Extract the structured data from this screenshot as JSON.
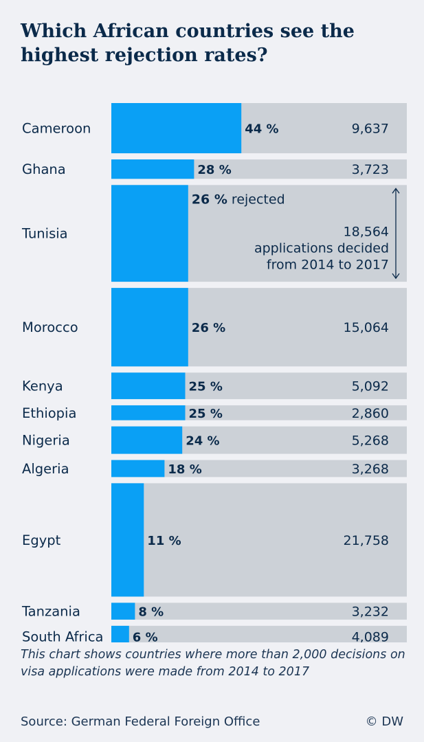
{
  "title": "Which African countries see the highest rejection rates?",
  "colors": {
    "rejected_bar": "#0aa0f5",
    "decided_bar": "#ccd1d7",
    "text": "#0b2a4a",
    "background": "#f0f1f5"
  },
  "chart_data": {
    "type": "bar",
    "orientation": "horizontal",
    "encoding": "bar height proportional to applications decided; blue fill proportional to rejection rate",
    "series": [
      {
        "name": "rejected",
        "unit": "%"
      },
      {
        "name": "applications decided from 2014 to 2017"
      }
    ],
    "rows": [
      {
        "country": "Cameroon",
        "rate": 44,
        "rate_label": "44 %",
        "applications": 9637,
        "applications_label": "9,637"
      },
      {
        "country": "Ghana",
        "rate": 28,
        "rate_label": "28 %",
        "applications": 3723,
        "applications_label": "3,723"
      },
      {
        "country": "Tunisia",
        "rate": 26,
        "rate_label": "26 %",
        "applications": 18564,
        "applications_label": "18,564",
        "annotation": {
          "rate_suffix": "rejected",
          "line1": "applications decided",
          "line2": "from 2014 to 2017"
        }
      },
      {
        "country": "Morocco",
        "rate": 26,
        "rate_label": "26 %",
        "applications": 15064,
        "applications_label": "15,064"
      },
      {
        "country": "Kenya",
        "rate": 25,
        "rate_label": "25 %",
        "applications": 5092,
        "applications_label": "5,092"
      },
      {
        "country": "Ethiopia",
        "rate": 25,
        "rate_label": "25 %",
        "applications": 2860,
        "applications_label": "2,860"
      },
      {
        "country": "Nigeria",
        "rate": 24,
        "rate_label": "24 %",
        "applications": 5268,
        "applications_label": "5,268"
      },
      {
        "country": "Algeria",
        "rate": 18,
        "rate_label": "18 %",
        "applications": 3268,
        "applications_label": "3,268"
      },
      {
        "country": "Egypt",
        "rate": 11,
        "rate_label": "11 %",
        "applications": 21758,
        "applications_label": "21,758"
      },
      {
        "country": "Tanzania",
        "rate": 8,
        "rate_label": "8 %",
        "applications": 3232,
        "applications_label": "3,232"
      },
      {
        "country": "South Africa",
        "rate": 6,
        "rate_label": "6 %",
        "applications": 4089,
        "applications_label": "4,089"
      }
    ]
  },
  "note": "This chart shows countries where more than 2,000 decisions on visa applications were made from 2014 to 2017",
  "source": "Source: German Federal Foreign Office",
  "credit": "© DW"
}
